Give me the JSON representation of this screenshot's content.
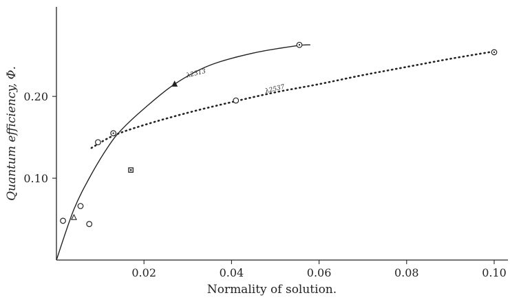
{
  "chart_data": {
    "type": "scatter",
    "xlabel": "Normality of solution.",
    "ylabel": "Quantum efficiency, Φ.",
    "xlim": [
      0,
      0.1
    ],
    "ylim": [
      0,
      0.28
    ],
    "x_ticks": [
      {
        "value": 0.02,
        "label": "0.02"
      },
      {
        "value": 0.04,
        "label": "0.04"
      },
      {
        "value": 0.06,
        "label": "0.06"
      },
      {
        "value": 0.08,
        "label": "0.08"
      },
      {
        "value": 0.1,
        "label": "0.10"
      }
    ],
    "y_ticks": [
      {
        "value": 0.1,
        "label": "0.10"
      },
      {
        "value": 0.2,
        "label": "0.20"
      }
    ],
    "grid": false,
    "series": [
      {
        "name": "λ2313",
        "style": "solid",
        "curve": [
          [
            0,
            0
          ],
          [
            0.004,
            0.062
          ],
          [
            0.008,
            0.105
          ],
          [
            0.012,
            0.14
          ],
          [
            0.015,
            0.16
          ],
          [
            0.02,
            0.185
          ],
          [
            0.027,
            0.215
          ],
          [
            0.035,
            0.238
          ],
          [
            0.045,
            0.253
          ],
          [
            0.055,
            0.262
          ],
          [
            0.058,
            0.263
          ]
        ],
        "label_at": [
          0.032,
          0.226
        ]
      },
      {
        "name": "λ2537",
        "style": "dotted",
        "curve": [
          [
            0.008,
            0.137
          ],
          [
            0.013,
            0.152
          ],
          [
            0.02,
            0.165
          ],
          [
            0.03,
            0.18
          ],
          [
            0.04,
            0.193
          ],
          [
            0.05,
            0.205
          ],
          [
            0.06,
            0.215
          ],
          [
            0.07,
            0.226
          ],
          [
            0.08,
            0.236
          ],
          [
            0.09,
            0.246
          ],
          [
            0.1,
            0.255
          ]
        ],
        "label_at": [
          0.05,
          0.207
        ]
      }
    ],
    "points": [
      {
        "marker": "circle",
        "x": 0.0015,
        "y": 0.048
      },
      {
        "marker": "triangle",
        "x": 0.004,
        "y": 0.052
      },
      {
        "marker": "circle",
        "x": 0.0055,
        "y": 0.066
      },
      {
        "marker": "circle",
        "x": 0.0075,
        "y": 0.044
      },
      {
        "marker": "circle",
        "x": 0.0095,
        "y": 0.144
      },
      {
        "marker": "circle-dot",
        "x": 0.013,
        "y": 0.155
      },
      {
        "marker": "square",
        "x": 0.017,
        "y": 0.11
      },
      {
        "marker": "triangle-filled",
        "x": 0.027,
        "y": 0.215
      },
      {
        "marker": "circle",
        "x": 0.041,
        "y": 0.195
      },
      {
        "marker": "circle-dot",
        "x": 0.0555,
        "y": 0.263
      },
      {
        "marker": "circle-dot",
        "x": 0.1,
        "y": 0.254
      }
    ]
  }
}
